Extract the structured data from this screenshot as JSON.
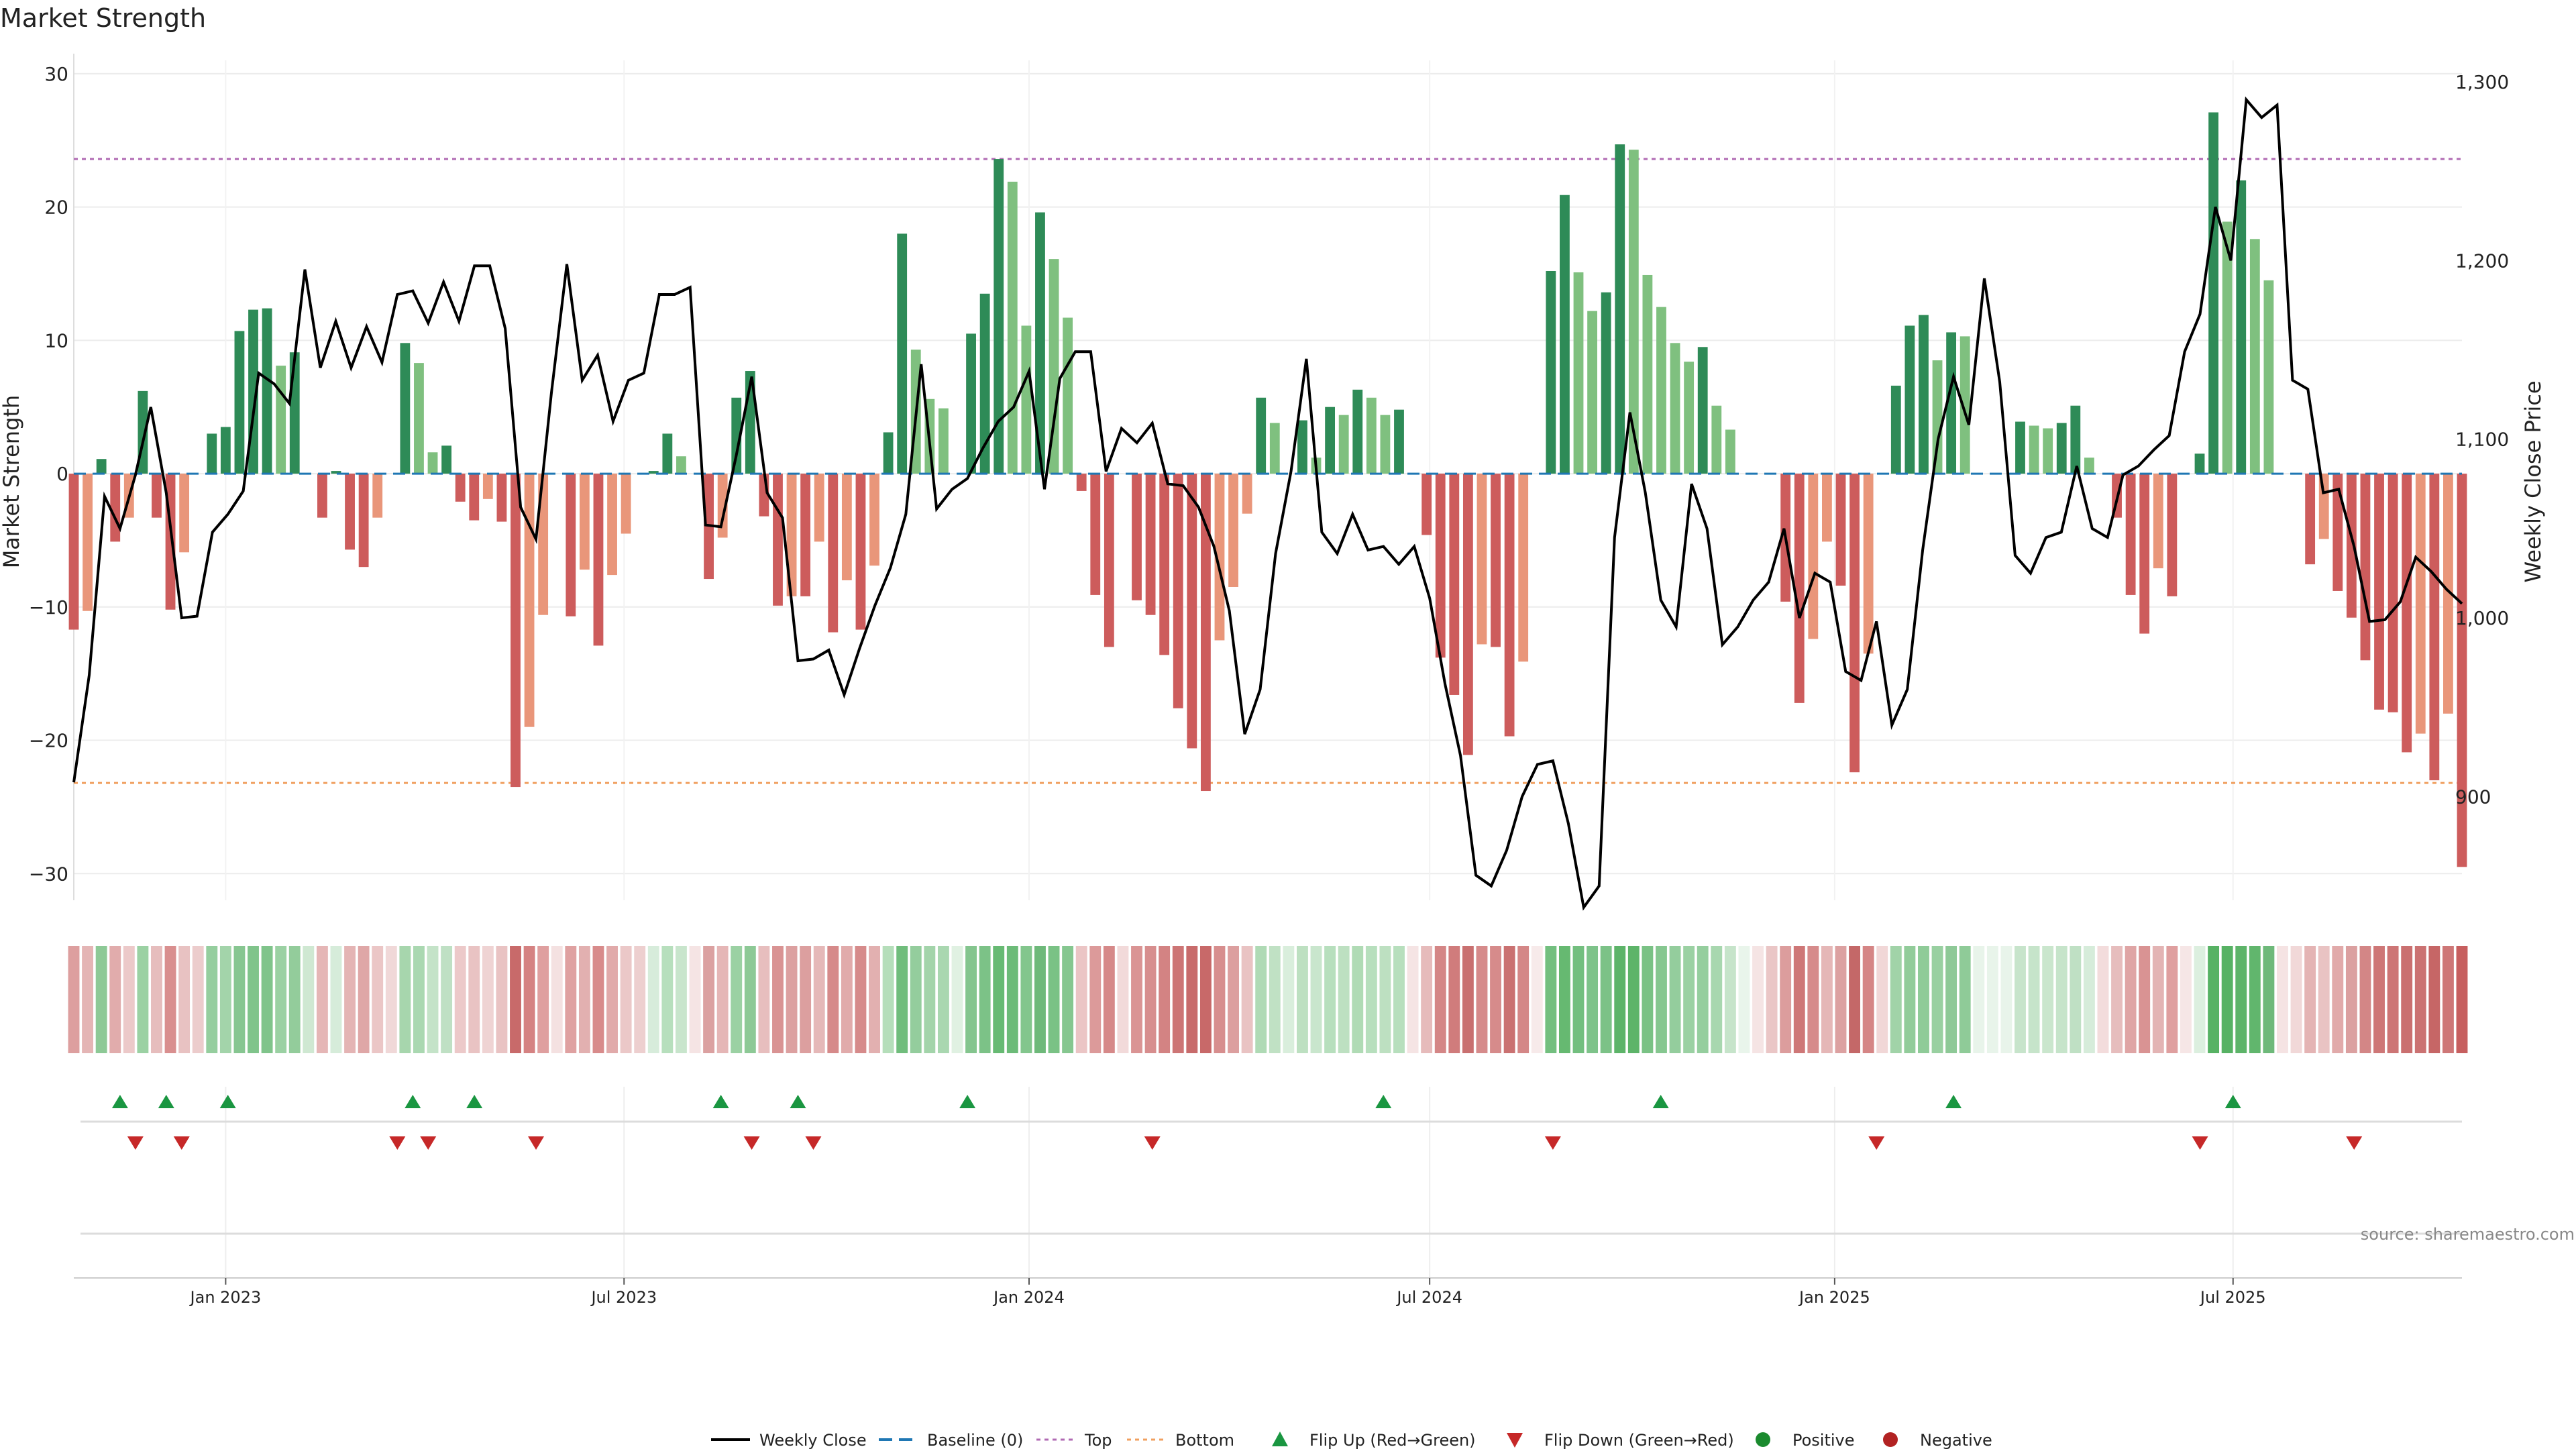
{
  "title": "Market Strength",
  "source": "source: sharemaestro.com",
  "colors": {
    "pos_strong": "#2e8b57",
    "pos_light": "#7fc07f",
    "neg_strong": "#cd5c5c",
    "neg_light": "#e9967a",
    "line": "#000000",
    "baseline": "#1f77b4",
    "top": "#b06ab3",
    "bottom": "#f0a060",
    "flip_up": "#1a9641",
    "flip_down": "#c62828",
    "positive": "#1a8a2e",
    "negative": "#b22222"
  },
  "legend": [
    {
      "key": "line",
      "label": "Weekly Close"
    },
    {
      "key": "baseline",
      "label": "Baseline (0)"
    },
    {
      "key": "top",
      "label": "Top"
    },
    {
      "key": "bottom",
      "label": "Bottom"
    },
    {
      "key": "flip_up",
      "label": "Flip Up (Red→Green)"
    },
    {
      "key": "flip_down",
      "label": "Flip Down (Green→Red)"
    },
    {
      "key": "positive",
      "label": "Positive"
    },
    {
      "key": "negative",
      "label": "Negative"
    }
  ],
  "chart_data": {
    "type": "bar",
    "ylabel": "Market Strength",
    "y2label": "Weekly Close Price",
    "ylim": [
      -32,
      31
    ],
    "y2lim": [
      842,
      1312
    ],
    "yticks": [
      30,
      20,
      10,
      0,
      -10,
      -20,
      -30
    ],
    "y2ticks": [
      1300,
      1200,
      1100,
      1000,
      900
    ],
    "y2tick_labels": [
      "1,300",
      "1,200",
      "1,100",
      "1,000",
      "900"
    ],
    "x_start": "2022-10-24",
    "x_end": "2025-10-13",
    "xticks": [
      {
        "date": "2023-01-01",
        "label": "Jan 2023"
      },
      {
        "date": "2023-07-01",
        "label": "Jul 2023"
      },
      {
        "date": "2024-01-01",
        "label": "Jan 2024"
      },
      {
        "date": "2024-07-01",
        "label": "Jul 2024"
      },
      {
        "date": "2025-01-01",
        "label": "Jan 2025"
      },
      {
        "date": "2025-07-01",
        "label": "Jul 2025"
      }
    ],
    "top_level": 23.6,
    "bottom_level": -23.2,
    "baseline": 0,
    "bars": {
      "name": "Market Strength",
      "values": [
        -11.7,
        -10.3,
        1.1,
        -5.1,
        -3.3,
        6.2,
        -3.3,
        -10.2,
        -5.9,
        0,
        3.0,
        3.5,
        10.7,
        12.3,
        12.4,
        8.1,
        9.1,
        0,
        -3.3,
        0.2,
        -5.7,
        -7.0,
        -3.3,
        0,
        9.8,
        8.3,
        1.6,
        2.1,
        -2.1,
        -3.5,
        -1.9,
        -3.6,
        -23.5,
        -19.0,
        -10.6,
        0,
        -10.7,
        -7.2,
        -12.9,
        -7.6,
        -4.5,
        0,
        0.2,
        3.0,
        1.3,
        0,
        -7.9,
        -4.8,
        5.7,
        7.7,
        -3.2,
        -9.9,
        -9.2,
        -9.2,
        -5.1,
        -11.9,
        -8.0,
        -11.7,
        -6.9,
        3.1,
        18.0,
        9.3,
        5.6,
        4.9,
        0,
        10.5,
        13.5,
        23.6,
        21.9,
        11.1,
        19.6,
        16.1,
        11.7,
        -1.3,
        -9.1,
        -13.0,
        0,
        -9.5,
        -10.6,
        -13.6,
        -17.6,
        -20.6,
        -23.8,
        -12.5,
        -8.5,
        -3.0,
        5.7,
        3.8,
        0,
        4.0,
        1.2,
        5.0,
        4.4,
        6.3,
        5.7,
        4.4,
        4.8,
        0,
        -4.6,
        -13.8,
        -16.6,
        -21.1,
        -12.8,
        -13.0,
        -19.7,
        -14.1,
        0,
        15.2,
        20.9,
        15.1,
        12.2,
        13.6,
        24.7,
        24.3,
        14.9,
        12.5,
        9.8,
        8.4,
        9.5,
        5.1,
        3.3,
        0,
        0,
        0,
        -9.6,
        -17.2,
        -12.4,
        -5.1,
        -8.4,
        -22.4,
        -13.5,
        0,
        6.6,
        11.1,
        11.9,
        8.5,
        10.6,
        10.3,
        0,
        0,
        0,
        3.9,
        3.6,
        3.4,
        3.8,
        5.1,
        1.2,
        0,
        -3.3,
        -9.1,
        -12.0,
        -7.1,
        -9.2,
        0,
        1.5,
        27.1,
        18.9,
        22.0,
        17.6,
        14.5,
        0,
        0,
        -6.8,
        -4.9,
        -8.8,
        -10.8,
        -14.0,
        -17.7,
        -17.9,
        -20.9,
        -19.5,
        -23.0,
        -18.0,
        -29.5
      ]
    },
    "line": {
      "name": "Weekly Close",
      "values": [
        908,
        968,
        1068,
        1050,
        1080,
        1118,
        1070,
        1000,
        1001,
        1048,
        1058,
        1071,
        1137,
        1131,
        1120,
        1195,
        1140,
        1166,
        1140,
        1163,
        1143,
        1181,
        1183,
        1165,
        1188,
        1166,
        1197,
        1197,
        1162,
        1062,
        1044,
        1126,
        1198,
        1133,
        1147,
        1110,
        1133,
        1137,
        1181,
        1181,
        1185,
        1052,
        1051,
        1091,
        1135,
        1070,
        1056,
        976,
        977,
        982,
        957,
        983,
        1007,
        1028,
        1058,
        1142,
        1061,
        1072,
        1078,
        1095,
        1110,
        1118,
        1138,
        1072,
        1134,
        1149,
        1149,
        1082,
        1106,
        1098,
        1109,
        1075,
        1074,
        1062,
        1040,
        1004,
        935,
        960,
        1036,
        1082,
        1145,
        1048,
        1036,
        1058,
        1038,
        1040,
        1030,
        1040,
        1011,
        963,
        923,
        856,
        850,
        870,
        900,
        918,
        920,
        885,
        838,
        850,
        1045,
        1115,
        1070,
        1010,
        995,
        1075,
        1050,
        985,
        995,
        1010,
        1020,
        1050,
        1000,
        1025,
        1020,
        970,
        965,
        998,
        940,
        960,
        1038,
        1100,
        1135,
        1108,
        1190,
        1132,
        1035,
        1025,
        1045,
        1048,
        1085,
        1050,
        1045,
        1080,
        1085,
        1094,
        1102,
        1149,
        1170,
        1230,
        1200,
        1290,
        1280,
        1287,
        1133,
        1128,
        1070,
        1072,
        1040,
        998,
        999,
        1009,
        1034,
        1026,
        1016,
        1008
      ],
      "ylim": [
        842,
        1312
      ]
    },
    "heat_colors": [
      "#dd9f9f",
      "#e4b5b5",
      "#8dc996",
      "#e1acac",
      "#ecc9c9",
      "#9bd1a3",
      "#e6bdbd",
      "#d98f8f",
      "#e8c2c2",
      "#eccccc",
      "#95ce9e",
      "#a3d4aa",
      "#87c691",
      "#80c48b",
      "#80c48b",
      "#9bd1a3",
      "#93cc9b",
      "#cfe8d2",
      "#e5b6b6",
      "#d6ecda",
      "#e4b4b4",
      "#dfa7a7",
      "#ebc6c6",
      "#f0d8d8",
      "#a7d6ad",
      "#aad8b1",
      "#c4e3c8",
      "#bfe0c4",
      "#ecc9c9",
      "#e9c3c3",
      "#efd3d3",
      "#e9c3c3",
      "#c86a6a",
      "#d58282",
      "#df9f9f",
      "#f4e1e1",
      "#dfa1a1",
      "#e2b0b0",
      "#d88b8b",
      "#e1aaaa",
      "#ebc8c8",
      "#edcfcf",
      "#d7ecdb",
      "#b7dfbd",
      "#c8e5cc",
      "#f5e4e4",
      "#dba1a1",
      "#e5b6b6",
      "#9bd1a3",
      "#8dc996",
      "#e7bebe",
      "#d99393",
      "#dca0a0",
      "#dc9f9f",
      "#e5b8b8",
      "#d68a8a",
      "#e1abab",
      "#d68b8b",
      "#e2b0b0",
      "#b5deba",
      "#70bd7c",
      "#94cd9d",
      "#a3d4aa",
      "#a9d7b0",
      "#e0f1e2",
      "#84c58e",
      "#7cc287",
      "#67ba73",
      "#6cbb78",
      "#83c68d",
      "#6eb97a",
      "#7ac285",
      "#86c790",
      "#ebc5c5",
      "#dc9a9a",
      "#d68989",
      "#f2dada",
      "#da9494",
      "#d78e8e",
      "#d38383",
      "#cd7575",
      "#c86b6b",
      "#c86969",
      "#d78e8e",
      "#dc9f9f",
      "#e9c3c3",
      "#afdab5",
      "#c0e1c4",
      "#d9eedc",
      "#bde0c1",
      "#c9e6cd",
      "#b7dfbd",
      "#bde0c1",
      "#b0dbb5",
      "#b7dfbd",
      "#bde0c1",
      "#b7dfbd",
      "#f5e4e4",
      "#e6bbbb",
      "#d48686",
      "#d07c7c",
      "#c97070",
      "#d68b8b",
      "#d68b8b",
      "#ca7171",
      "#d48787",
      "#f7eaea",
      "#73bf7f",
      "#66b971",
      "#73bf7f",
      "#7ec38a",
      "#7cc287",
      "#5db469",
      "#5db469",
      "#7ac285",
      "#86c790",
      "#94cd9d",
      "#9bd1a3",
      "#95ce9e",
      "#a8d7af",
      "#c6e4ca",
      "#e9f5eb",
      "#f5e4e4",
      "#eac6c6",
      "#dc9d9d",
      "#ce7777",
      "#d68b8b",
      "#e5b7b7",
      "#dca1a1",
      "#c46868",
      "#d58585",
      "#f1d7d7",
      "#a1d3a8",
      "#92cc9a",
      "#8fcb98",
      "#99d0a1",
      "#8ec997",
      "#8fcb98",
      "#e8f4ea",
      "#e8f4ea",
      "#e8f4ea",
      "#c7e4cb",
      "#c6e4ca",
      "#cae6cd",
      "#c6e4ca",
      "#bfe0c4",
      "#d6ecda",
      "#f3dcdc",
      "#e6bdbd",
      "#dfa5a5",
      "#d99393",
      "#e3b4b4",
      "#df9f9f",
      "#f6e6e6",
      "#dcefdf",
      "#57b264",
      "#57b264",
      "#5db469",
      "#61b66d",
      "#6eb97a",
      "#f5e3e3",
      "#f1d8d8",
      "#e4b4b4",
      "#e9c3c3",
      "#e1aaaa",
      "#dba0a0",
      "#d38686",
      "#ce7777",
      "#cd7575",
      "#ca7070",
      "#cb7272",
      "#c66666",
      "#ce7777",
      "#c75f5f"
    ],
    "flip_up_dates": [
      "2022-11-14",
      "2022-12-05",
      "2023-01-02",
      "2023-03-27",
      "2023-04-24",
      "2023-08-14",
      "2023-09-18",
      "2023-12-04",
      "2024-06-10",
      "2024-10-14",
      "2025-02-24",
      "2025-07-01"
    ],
    "flip_down_dates": [
      "2022-11-21",
      "2022-12-12",
      "2023-03-20",
      "2023-04-03",
      "2023-05-22",
      "2023-08-28",
      "2023-09-25",
      "2024-02-26",
      "2024-08-26",
      "2025-01-20",
      "2025-06-16",
      "2025-08-25"
    ]
  }
}
